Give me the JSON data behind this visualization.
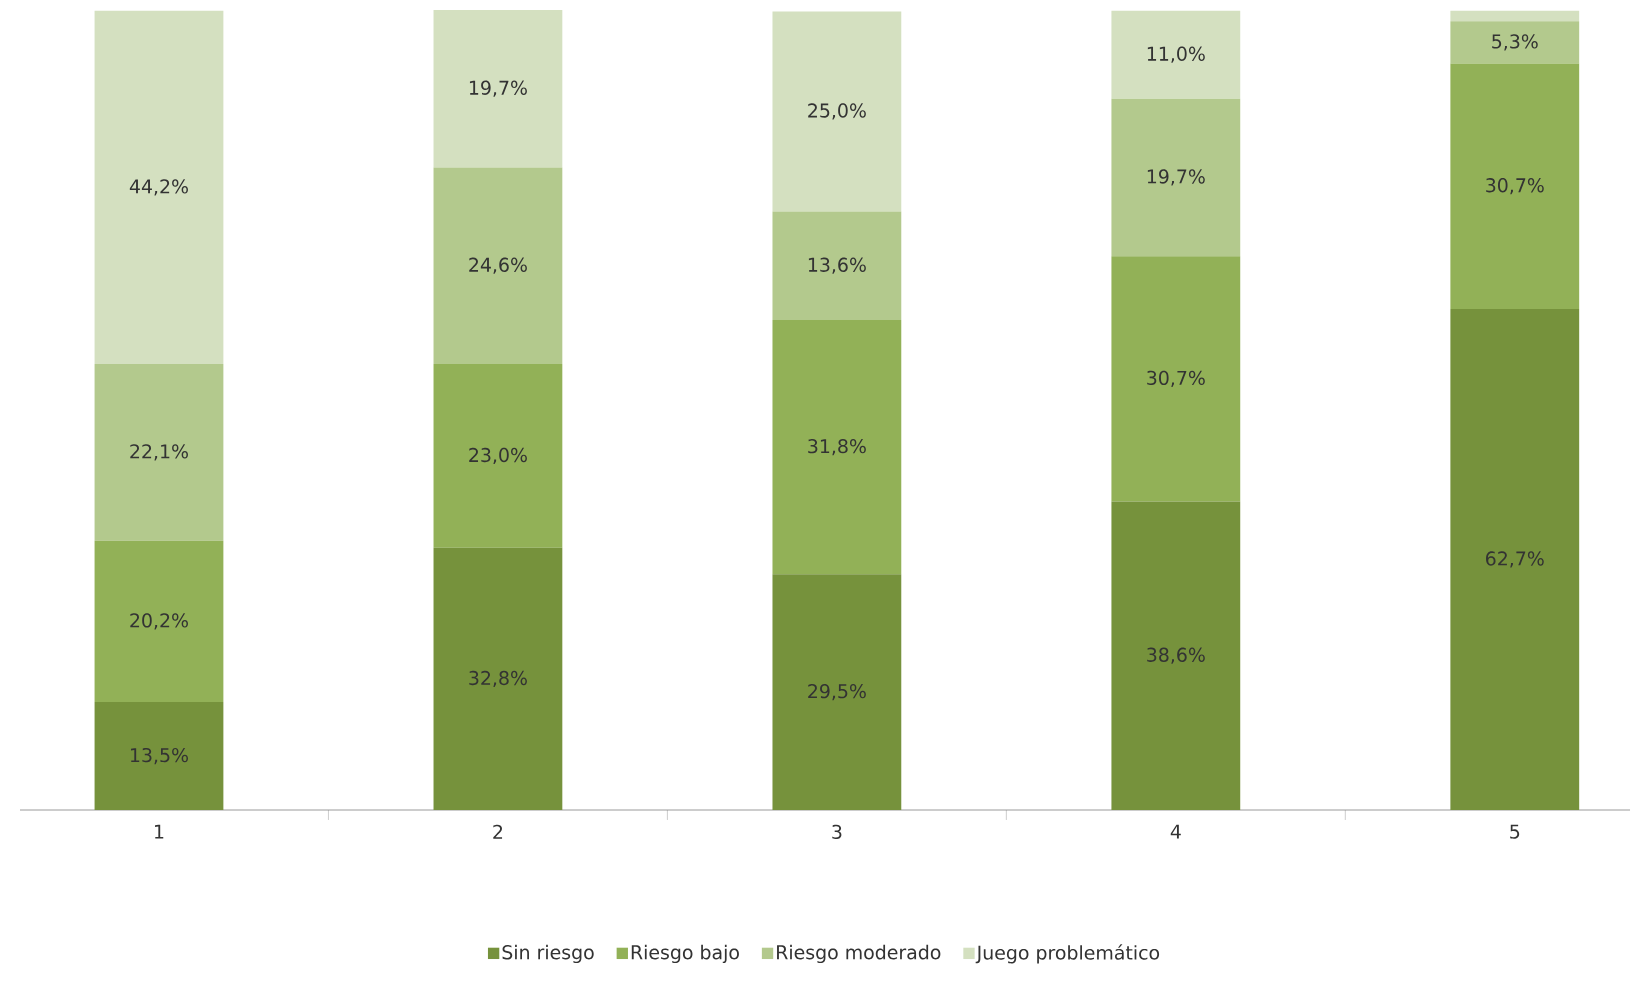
{
  "chart_data": {
    "type": "bar",
    "stacked": true,
    "categories": [
      "1",
      "2",
      "3",
      "4",
      "5"
    ],
    "series": [
      {
        "name": "Sin riesgo",
        "color": "#76923c",
        "values": [
          13.5,
          32.8,
          29.5,
          38.6,
          62.7
        ],
        "value_labels": [
          "13,5%",
          "32,8%",
          "29,5%",
          "38,6%",
          "62,7%"
        ]
      },
      {
        "name": "Riesgo bajo",
        "color": "#92b157",
        "values": [
          20.2,
          23.0,
          31.8,
          30.7,
          30.7
        ],
        "value_labels": [
          "20,2%",
          "23,0%",
          "31,8%",
          "30,7%",
          "30,7%"
        ]
      },
      {
        "name": "Riesgo moderado",
        "color": "#b3c98d",
        "values": [
          22.1,
          24.6,
          13.6,
          19.7,
          5.3
        ],
        "value_labels": [
          "22,1%",
          "24,6%",
          "13,6%",
          "19,7%",
          "5,3%"
        ]
      },
      {
        "name": "Juego problemático",
        "color": "#d4e0c0",
        "values": [
          44.2,
          19.7,
          25.0,
          11.0,
          1.3
        ],
        "value_labels": [
          "44,2%",
          "19,7%",
          "25,0%",
          "11,0%",
          null
        ]
      }
    ],
    "legend": "bottom"
  }
}
